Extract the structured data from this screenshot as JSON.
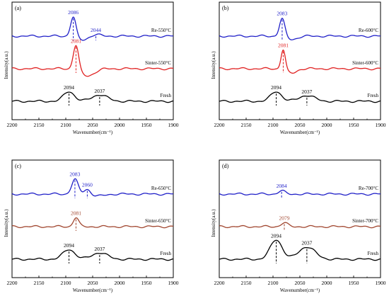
{
  "chart_data": [
    {
      "type": "line",
      "panel_label": "(a)",
      "xlabel": "Wavenumber(cm⁻¹)",
      "ylabel": "Intensity(a.u.)",
      "xlim": [
        2200,
        1900
      ],
      "xticks": [
        2200,
        2150,
        2100,
        2050,
        2000,
        1950,
        1900
      ],
      "series": [
        {
          "name": "Re-550°C",
          "color": "#1f1fc8",
          "offset": 2.0,
          "baseline": 0.1,
          "peaks": [
            {
              "x": 2086,
              "h": 0.62,
              "w": 5,
              "label": "2086"
            },
            {
              "x": 2044,
              "h": 0.05,
              "w": 8,
              "label": "2044"
            }
          ],
          "dips": [
            {
              "x": 2070,
              "h": 0.12,
              "w": 10
            }
          ]
        },
        {
          "name": "Sinter-550°C",
          "color": "#e02020",
          "offset": 1.0,
          "baseline": 0.1,
          "peaks": [
            {
              "x": 2081,
              "h": 0.78,
              "w": 5,
              "label": "2081"
            }
          ],
          "dips": [
            {
              "x": 2060,
              "h": 0.22,
              "w": 13
            }
          ]
        },
        {
          "name": "Fresh",
          "color": "#000000",
          "offset": 0.0,
          "baseline": 0.1,
          "peaks": [
            {
              "x": 2094,
              "h": 0.3,
              "w": 10,
              "label": "2094"
            },
            {
              "x": 2037,
              "h": 0.2,
              "w": 14,
              "label": "2037"
            }
          ],
          "dips": []
        }
      ]
    },
    {
      "type": "line",
      "panel_label": "(b)",
      "xlabel": "Wavenumber(cm⁻¹)",
      "ylabel": "Intensity(a.u.)",
      "xlim": [
        2200,
        1900
      ],
      "xticks": [
        2200,
        2150,
        2100,
        2050,
        2000,
        1950,
        1900
      ],
      "series": [
        {
          "name": "Re-600°C",
          "color": "#1f1fc8",
          "offset": 2.0,
          "baseline": 0.1,
          "peaks": [
            {
              "x": 2083,
              "h": 0.55,
              "w": 5,
              "label": "2083"
            }
          ],
          "dips": [
            {
              "x": 2065,
              "h": 0.1,
              "w": 10
            }
          ]
        },
        {
          "name": "Sinter-600°C",
          "color": "#e02020",
          "offset": 1.0,
          "baseline": 0.1,
          "peaks": [
            {
              "x": 2081,
              "h": 0.62,
              "w": 4,
              "label": "2081"
            }
          ],
          "dips": [
            {
              "x": 2066,
              "h": 0.14,
              "w": 9
            }
          ]
        },
        {
          "name": "Fresh",
          "color": "#000000",
          "offset": 0.0,
          "baseline": 0.1,
          "peaks": [
            {
              "x": 2094,
              "h": 0.3,
              "w": 10,
              "label": "2094"
            },
            {
              "x": 2037,
              "h": 0.18,
              "w": 14,
              "label": "2037"
            }
          ],
          "dips": []
        }
      ]
    },
    {
      "type": "line",
      "panel_label": "(c)",
      "xlabel": "Wavenumber(cm⁻¹)",
      "ylabel": "Intensity(a.u.)",
      "xlim": [
        2200,
        1900
      ],
      "xticks": [
        2200,
        2150,
        2100,
        2050,
        2000,
        1950,
        1900
      ],
      "series": [
        {
          "name": "Re-650°C",
          "color": "#1f1fc8",
          "offset": 2.0,
          "baseline": 0.1,
          "peaks": [
            {
              "x": 2083,
              "h": 0.45,
              "w": 6,
              "label": "2083"
            },
            {
              "x": 2060,
              "h": 0.16,
              "w": 6,
              "label": "2060"
            }
          ],
          "dips": [
            {
              "x": 2040,
              "h": 0.06,
              "w": 12
            }
          ]
        },
        {
          "name": "Sinter-650°C",
          "color": "#a0452e",
          "offset": 1.0,
          "baseline": 0.1,
          "peaks": [
            {
              "x": 2081,
              "h": 0.28,
              "w": 5,
              "label": "2081"
            }
          ],
          "dips": []
        },
        {
          "name": "Fresh",
          "color": "#000000",
          "offset": 0.0,
          "baseline": 0.1,
          "peaks": [
            {
              "x": 2094,
              "h": 0.3,
              "w": 11,
              "label": "2094"
            },
            {
              "x": 2037,
              "h": 0.2,
              "w": 14,
              "label": "2037"
            }
          ],
          "dips": []
        }
      ]
    },
    {
      "type": "line",
      "panel_label": "(d)",
      "xlabel": "Wavenumber(cm⁻¹)",
      "ylabel": "Intensity(a.u.)",
      "xlim": [
        2200,
        1900
      ],
      "xticks": [
        2200,
        2150,
        2100,
        2050,
        2000,
        1950,
        1900
      ],
      "series": [
        {
          "name": "Re-700°C",
          "color": "#1f1fc8",
          "offset": 2.0,
          "baseline": 0.1,
          "peaks": [
            {
              "x": 2084,
              "h": 0.1,
              "w": 6,
              "label": "2084"
            }
          ],
          "dips": []
        },
        {
          "name": "Sinter-700°C",
          "color": "#a0452e",
          "offset": 1.0,
          "baseline": 0.1,
          "peaks": [
            {
              "x": 2079,
              "h": 0.12,
              "w": 6,
              "label": "2079"
            }
          ],
          "dips": []
        },
        {
          "name": "Fresh",
          "color": "#000000",
          "offset": 0.0,
          "baseline": 0.1,
          "peaks": [
            {
              "x": 2094,
              "h": 0.6,
              "w": 11,
              "label": "2094"
            },
            {
              "x": 2037,
              "h": 0.38,
              "w": 15,
              "label": "2037"
            }
          ],
          "dips": []
        }
      ]
    }
  ]
}
